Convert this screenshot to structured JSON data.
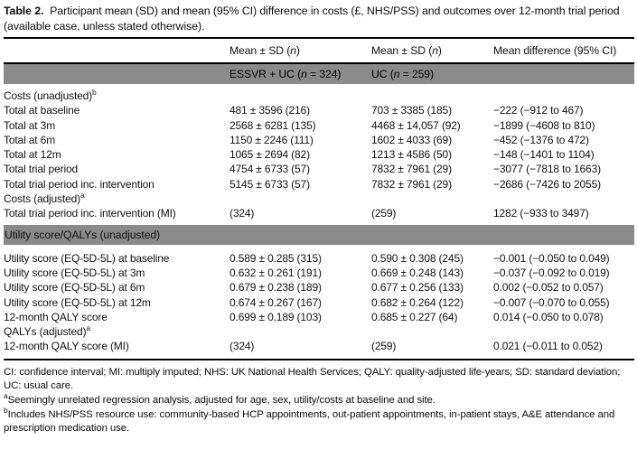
{
  "table": {
    "caption": {
      "label": "Table 2.",
      "text": "Participant mean (SD) and mean (95% CI) difference in costs (£, NHS/PSS) and outcomes over 12-month trial period (available case, unless stated otherwise)."
    },
    "column_headers": [
      {
        "pre": "Mean ± SD (",
        "it": "n",
        "post": ")"
      },
      {
        "pre": "Mean ± SD (",
        "it": "n",
        "post": ")"
      },
      {
        "pre": "Mean difference (95% CI)",
        "it": "",
        "post": ""
      }
    ],
    "group_headers": [
      {
        "pre": "ESSVR + UC (",
        "it": "n",
        "post": " = 324)"
      },
      {
        "pre": "UC (",
        "it": "n",
        "post": " = 259)"
      }
    ],
    "rows": [
      {
        "type": "section",
        "label": "Costs (unadjusted)",
        "sup": "b"
      },
      {
        "type": "data",
        "label": "Total at baseline",
        "c1": "481 ± 3596 (216)",
        "c2": "703 ± 3385 (185)",
        "c3": "−222 (−912 to 467)"
      },
      {
        "type": "data",
        "label": "Total at 3m",
        "c1": "2568 ± 6281 (135)",
        "c2": "4468 ± 14,057 (92)",
        "c3": "−1899 (−4608 to 810)"
      },
      {
        "type": "data",
        "label": "Total at 6m",
        "c1": "1150 ± 2246 (111)",
        "c2": "1602 ± 4033 (69)",
        "c3": "−452 (−1376 to 472)"
      },
      {
        "type": "data",
        "label": "Total at 12m",
        "c1": "1065 ± 2694 (82)",
        "c2": "1213 ± 4586 (50)",
        "c3": "−148 (−1401 to 1104)"
      },
      {
        "type": "data",
        "label": "Total trial period",
        "c1": "4754 ± 6733 (57)",
        "c2": "7832 ± 7961 (29)",
        "c3": "−3077 (−7818 to 1663)"
      },
      {
        "type": "data",
        "label": "Total trial period inc. intervention",
        "c1": "5145 ± 6733 (57)",
        "c2": "7832 ± 7961 (29)",
        "c3": "−2686 (−7426 to 2055)"
      },
      {
        "type": "section",
        "label": "Costs (adjusted)",
        "sup": "a"
      },
      {
        "type": "data",
        "label": "Total trial period inc. intervention (MI)",
        "c1": "(324)",
        "c2": "(259)",
        "c3": "1282 (−933 to 3497)"
      },
      {
        "type": "band",
        "label": "Utility score/QALYs (unadjusted)"
      },
      {
        "type": "data",
        "label": "Utility score (EQ-5D-5L) at baseline",
        "c1": "0.589 ± 0.285 (315)",
        "c2": "0.590 ± 0.308 (245)",
        "c3": "−0.001 (−0.050 to 0.049)"
      },
      {
        "type": "data",
        "label": "Utility score (EQ-5D-5L) at 3m",
        "c1": "0.632 ± 0.261 (191)",
        "c2": "0.669 ± 0.248 (143)",
        "c3": "−0.037 (−0.092 to 0.019)"
      },
      {
        "type": "data",
        "label": "Utility score (EQ-5D-5L) at 6m",
        "c1": "0.679 ± 0.238 (189)",
        "c2": "0.677 ± 0.256 (133)",
        "c3": "0.002 (−0.052 to 0.057)"
      },
      {
        "type": "data",
        "label": "Utility score (EQ-5D-5L) at 12m",
        "c1": "0.674 ± 0.267 (167)",
        "c2": "0.682 ± 0.264 (122)",
        "c3": "−0.007 (−0.070 to 0.055)"
      },
      {
        "type": "data",
        "label": "12-month QALY score",
        "c1": "0.699 ± 0.189 (103)",
        "c2": "0.685 ± 0.227 (64)",
        "c3": "0.014 (−0.050 to 0.078)"
      },
      {
        "type": "section",
        "label": "QALYs (adjusted)",
        "sup": "a"
      },
      {
        "type": "data",
        "label": "12-month QALY score (MI)",
        "c1": "(324)",
        "c2": "(259)",
        "c3": "0.021 (−0.011 to 0.052)"
      }
    ],
    "footnotes": [
      {
        "sup": "",
        "text": "CI: confidence interval; MI: multiply imputed; NHS: UK National Health Services; QALY: quality-adjusted life-years; SD: standard deviation; UC: usual care."
      },
      {
        "sup": "a",
        "text": "Seemingly unrelated regression analysis, adjusted for age, sex, utility/costs at baseline and site."
      },
      {
        "sup": "b",
        "text": "Includes NHS/PSS resource use: community-based HCP appointments, out-patient appointments, in-patient stays, A&E attendance and prescription medication use."
      }
    ],
    "colors": {
      "band_gray": "#8a8a8a",
      "rule_black": "#000000",
      "background": "#ffffff"
    }
  }
}
